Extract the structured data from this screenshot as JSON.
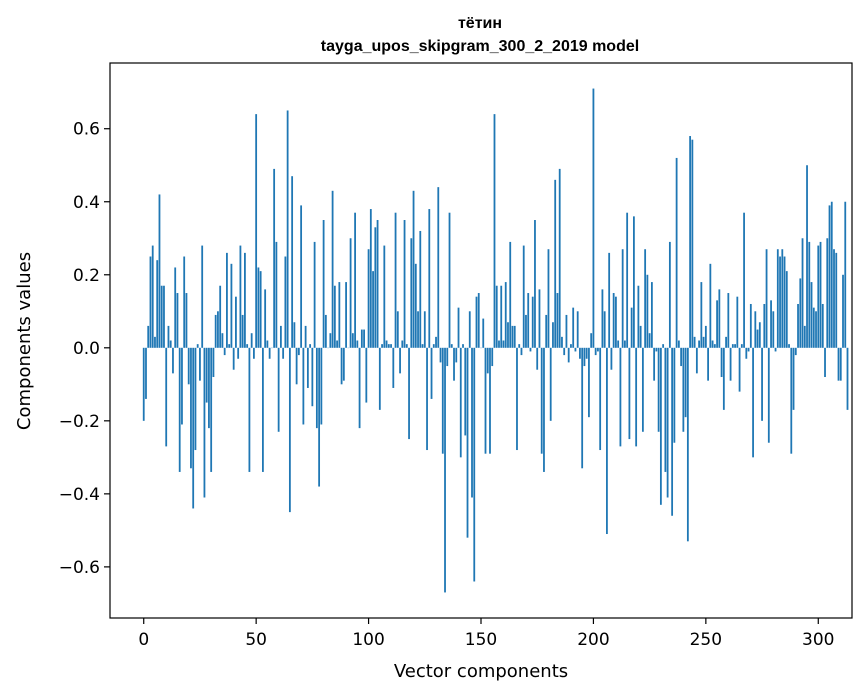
{
  "chart_data": {
    "type": "bar",
    "title": "тётин",
    "subtitle": "tayga_upos_skipgram_300_2_2019 model",
    "xlabel": "Vector components",
    "ylabel": "Components values",
    "xlim": [
      -15,
      315
    ],
    "ylim": [
      -0.74,
      0.78
    ],
    "xticks": [
      0,
      50,
      100,
      150,
      200,
      250,
      300
    ],
    "xtick_labels": [
      "0",
      "50",
      "100",
      "150",
      "200",
      "250",
      "300"
    ],
    "yticks": [
      -0.6,
      -0.4,
      -0.2,
      0.0,
      0.2,
      0.4,
      0.6
    ],
    "ytick_labels": [
      "−0.6",
      "−0.4",
      "−0.2",
      "0.0",
      "0.2",
      "0.4",
      "0.6"
    ],
    "bar_color": "#1f77b4",
    "grid": false,
    "series": [
      {
        "name": "тётин",
        "x_start": 0,
        "values": [
          -0.2,
          -0.14,
          0.06,
          0.25,
          0.28,
          0.03,
          0.24,
          0.42,
          0.17,
          0.17,
          -0.27,
          0.06,
          0.02,
          -0.07,
          0.22,
          0.15,
          -0.34,
          -0.21,
          0.25,
          0.15,
          -0.1,
          -0.33,
          -0.44,
          -0.28,
          0.01,
          -0.09,
          0.28,
          -0.41,
          -0.15,
          -0.22,
          -0.34,
          -0.08,
          0.09,
          0.1,
          0.17,
          0.04,
          -0.02,
          0.26,
          0.01,
          0.23,
          -0.06,
          0.14,
          -0.03,
          0.28,
          0.09,
          0.26,
          0.01,
          -0.34,
          0.04,
          -0.03,
          0.64,
          0.22,
          0.21,
          -0.34,
          0.16,
          0.02,
          -0.03,
          0.0,
          0.49,
          0.29,
          -0.23,
          0.06,
          -0.03,
          0.25,
          0.65,
          -0.45,
          0.47,
          0.07,
          -0.1,
          -0.02,
          0.39,
          -0.21,
          0.06,
          -0.11,
          0.01,
          -0.16,
          0.29,
          -0.22,
          -0.38,
          -0.21,
          0.35,
          0.09,
          0.0,
          0.04,
          0.43,
          0.17,
          0.02,
          0.18,
          -0.1,
          -0.09,
          0.18,
          0.0,
          0.3,
          0.04,
          0.37,
          0.02,
          -0.22,
          0.05,
          0.05,
          -0.15,
          0.27,
          0.38,
          0.21,
          0.33,
          0.35,
          -0.17,
          0.01,
          0.28,
          0.02,
          0.01,
          0.01,
          -0.11,
          0.37,
          0.1,
          -0.07,
          0.02,
          0.35,
          0.01,
          -0.25,
          0.3,
          0.43,
          0.23,
          0.1,
          0.32,
          0.01,
          0.1,
          -0.28,
          0.38,
          -0.14,
          0.01,
          0.03,
          0.44,
          -0.04,
          -0.29,
          -0.67,
          -0.05,
          0.37,
          0.01,
          -0.09,
          -0.04,
          0.11,
          -0.3,
          0.01,
          -0.24,
          -0.52,
          0.1,
          -0.41,
          -0.64,
          0.14,
          0.15,
          0.0,
          0.08,
          -0.29,
          -0.07,
          -0.29,
          -0.05,
          0.64,
          0.17,
          0.02,
          0.17,
          0.02,
          0.18,
          0.07,
          0.29,
          0.06,
          0.06,
          -0.28,
          0.01,
          -0.02,
          0.28,
          0.09,
          0.15,
          -0.01,
          0.14,
          0.35,
          -0.06,
          0.16,
          -0.29,
          -0.34,
          0.09,
          0.27,
          -0.2,
          0.07,
          0.46,
          0.15,
          0.49,
          0.03,
          -0.02,
          0.09,
          -0.04,
          0.01,
          0.11,
          -0.01,
          0.1,
          -0.03,
          -0.33,
          -0.05,
          -0.03,
          -0.19,
          0.04,
          0.71,
          -0.02,
          -0.01,
          -0.28,
          0.16,
          0.1,
          -0.51,
          0.26,
          -0.06,
          0.15,
          0.14,
          0.02,
          -0.27,
          0.27,
          0.02,
          0.37,
          -0.25,
          0.11,
          0.36,
          -0.27,
          0.17,
          0.06,
          -0.23,
          0.27,
          0.2,
          0.04,
          0.18,
          -0.09,
          -0.01,
          -0.23,
          -0.43,
          0.01,
          -0.34,
          -0.41,
          0.29,
          -0.46,
          -0.26,
          0.52,
          0.02,
          -0.05,
          -0.23,
          -0.19,
          -0.53,
          0.58,
          0.57,
          0.03,
          -0.07,
          0.02,
          0.18,
          0.03,
          0.06,
          -0.09,
          0.23,
          0.02,
          0.01,
          0.13,
          0.16,
          -0.08,
          -0.17,
          0.03,
          0.15,
          -0.09,
          0.01,
          0.01,
          0.14,
          -0.12,
          0.01,
          0.37,
          -0.03,
          -0.01,
          0.12,
          -0.3,
          0.1,
          0.05,
          0.07,
          -0.2,
          0.12,
          0.27,
          -0.26,
          0.13,
          0.1,
          -0.01,
          0.27,
          0.25,
          0.27,
          0.25,
          0.21,
          0.01,
          -0.29,
          -0.17,
          -0.02,
          0.12,
          0.19,
          0.3,
          0.06,
          0.5,
          0.29,
          0.18,
          0.11,
          0.1,
          0.28,
          0.29,
          0.12,
          -0.08,
          0.3,
          0.39,
          0.4,
          0.27,
          0.26,
          -0.09,
          -0.09,
          0.2,
          0.4,
          -0.17
        ]
      }
    ]
  }
}
